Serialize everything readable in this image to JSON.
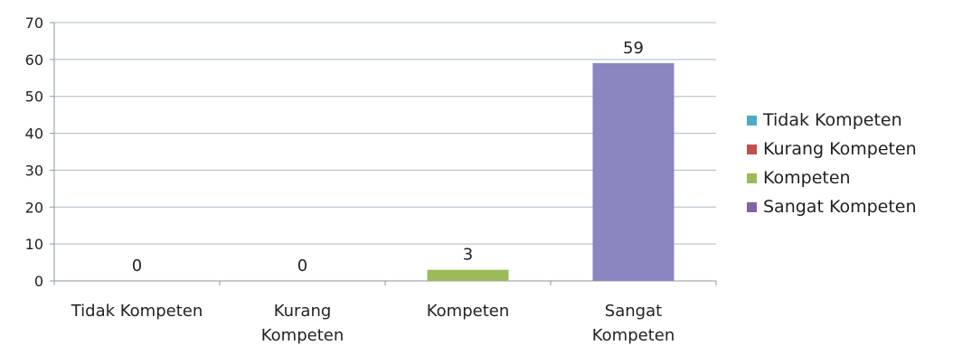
{
  "chart_data": {
    "type": "bar",
    "categories": [
      "Tidak Kompeten",
      "Kurang Kompeten",
      "Kompeten",
      "Sangat Kompeten"
    ],
    "category_lines": [
      [
        "Tidak Kompeten"
      ],
      [
        "Kurang",
        "Kompeten"
      ],
      [
        "Kompeten"
      ],
      [
        "Sangat",
        "Kompeten"
      ]
    ],
    "values": [
      0,
      0,
      3,
      59
    ],
    "data_labels": [
      "0",
      "0",
      "3",
      "59"
    ],
    "ylim": [
      0,
      70
    ],
    "yticks": [
      0,
      10,
      20,
      30,
      40,
      50,
      60,
      70
    ],
    "grid": true,
    "legend_position": "right",
    "legend": [
      {
        "label": "Tidak Kompeten",
        "color": "#4bacc6"
      },
      {
        "label": "Kurang Kompeten",
        "color": "#c0504d"
      },
      {
        "label": "Kompeten",
        "color": "#9bbb59"
      },
      {
        "label": "Sangat Kompeten",
        "color": "#8064a2"
      }
    ],
    "colors": [
      "#4bacc6",
      "#c0504d",
      "#9bbb59",
      "#8a86c0"
    ],
    "gridline_color": "#a8bcc8",
    "axis_color": "#8a9aa6"
  }
}
